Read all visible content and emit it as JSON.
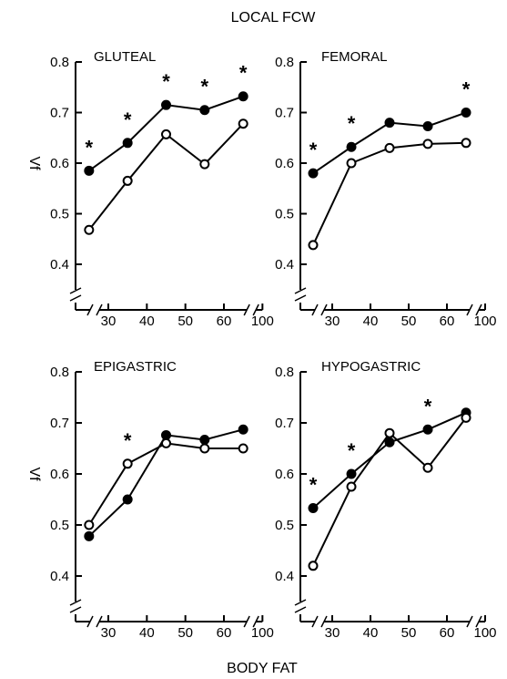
{
  "figure": {
    "title": "LOCAL FCW",
    "xlabel": "BODY FAT",
    "ylabel": "Vf"
  },
  "chart_data": [
    {
      "type": "line",
      "title": "GLUTEAL",
      "x": [
        25,
        35,
        45,
        55,
        65
      ],
      "xticks": [
        "30",
        "40",
        "50",
        "60",
        "100"
      ],
      "xtick_values": [
        30,
        40,
        50,
        60,
        70
      ],
      "yticks": [
        "0.4",
        "0.5",
        "0.6",
        "0.7",
        "0.8"
      ],
      "ylim": [
        0.4,
        0.8
      ],
      "ylabel": "Vf",
      "axis_breaks": true,
      "series": [
        {
          "marker": "filled",
          "values": [
            0.585,
            0.64,
            0.715,
            0.705,
            0.732
          ]
        },
        {
          "marker": "open",
          "values": [
            0.468,
            0.565,
            0.657,
            0.598,
            0.678
          ]
        }
      ],
      "significance_marker": "*",
      "significant_x": [
        25,
        35,
        45,
        55,
        65
      ]
    },
    {
      "type": "line",
      "title": "FEMORAL",
      "x": [
        25,
        35,
        45,
        55,
        65
      ],
      "xticks": [
        "30",
        "40",
        "50",
        "60",
        "100"
      ],
      "xtick_values": [
        30,
        40,
        50,
        60,
        70
      ],
      "yticks": [
        "0.4",
        "0.5",
        "0.6",
        "0.7",
        "0.8"
      ],
      "ylim": [
        0.4,
        0.8
      ],
      "ylabel": "",
      "axis_breaks": true,
      "series": [
        {
          "marker": "filled",
          "values": [
            0.58,
            0.632,
            0.68,
            0.673,
            0.7
          ]
        },
        {
          "marker": "open",
          "values": [
            0.438,
            0.6,
            0.63,
            0.638,
            0.64
          ]
        }
      ],
      "significance_marker": "*",
      "significant_x": [
        25,
        35,
        65
      ]
    },
    {
      "type": "line",
      "title": "EPIGASTRIC",
      "x": [
        25,
        35,
        45,
        55,
        65
      ],
      "xticks": [
        "30",
        "40",
        "50",
        "60",
        "100"
      ],
      "xtick_values": [
        30,
        40,
        50,
        60,
        70
      ],
      "yticks": [
        "0.4",
        "0.5",
        "0.6",
        "0.7",
        "0.8"
      ],
      "ylim": [
        0.4,
        0.8
      ],
      "ylabel": "Vf",
      "axis_breaks": true,
      "series": [
        {
          "marker": "filled",
          "values": [
            0.478,
            0.55,
            0.676,
            0.667,
            0.687
          ]
        },
        {
          "marker": "open",
          "values": [
            0.5,
            0.62,
            0.66,
            0.65,
            0.65
          ]
        }
      ],
      "significance_marker": "*",
      "significant_x": [
        35
      ]
    },
    {
      "type": "line",
      "title": "HYPOGASTRIC",
      "x": [
        25,
        35,
        45,
        55,
        65
      ],
      "xticks": [
        "30",
        "40",
        "50",
        "60",
        "100"
      ],
      "xtick_values": [
        30,
        40,
        50,
        60,
        70
      ],
      "yticks": [
        "0.4",
        "0.5",
        "0.6",
        "0.7",
        "0.8"
      ],
      "ylim": [
        0.4,
        0.8
      ],
      "ylabel": "",
      "axis_breaks": true,
      "series": [
        {
          "marker": "filled",
          "values": [
            0.533,
            0.6,
            0.662,
            0.687,
            0.72
          ]
        },
        {
          "marker": "open",
          "values": [
            0.42,
            0.575,
            0.68,
            0.612,
            0.71
          ]
        }
      ],
      "significance_marker": "*",
      "significant_x": [
        25,
        35,
        55
      ]
    }
  ]
}
